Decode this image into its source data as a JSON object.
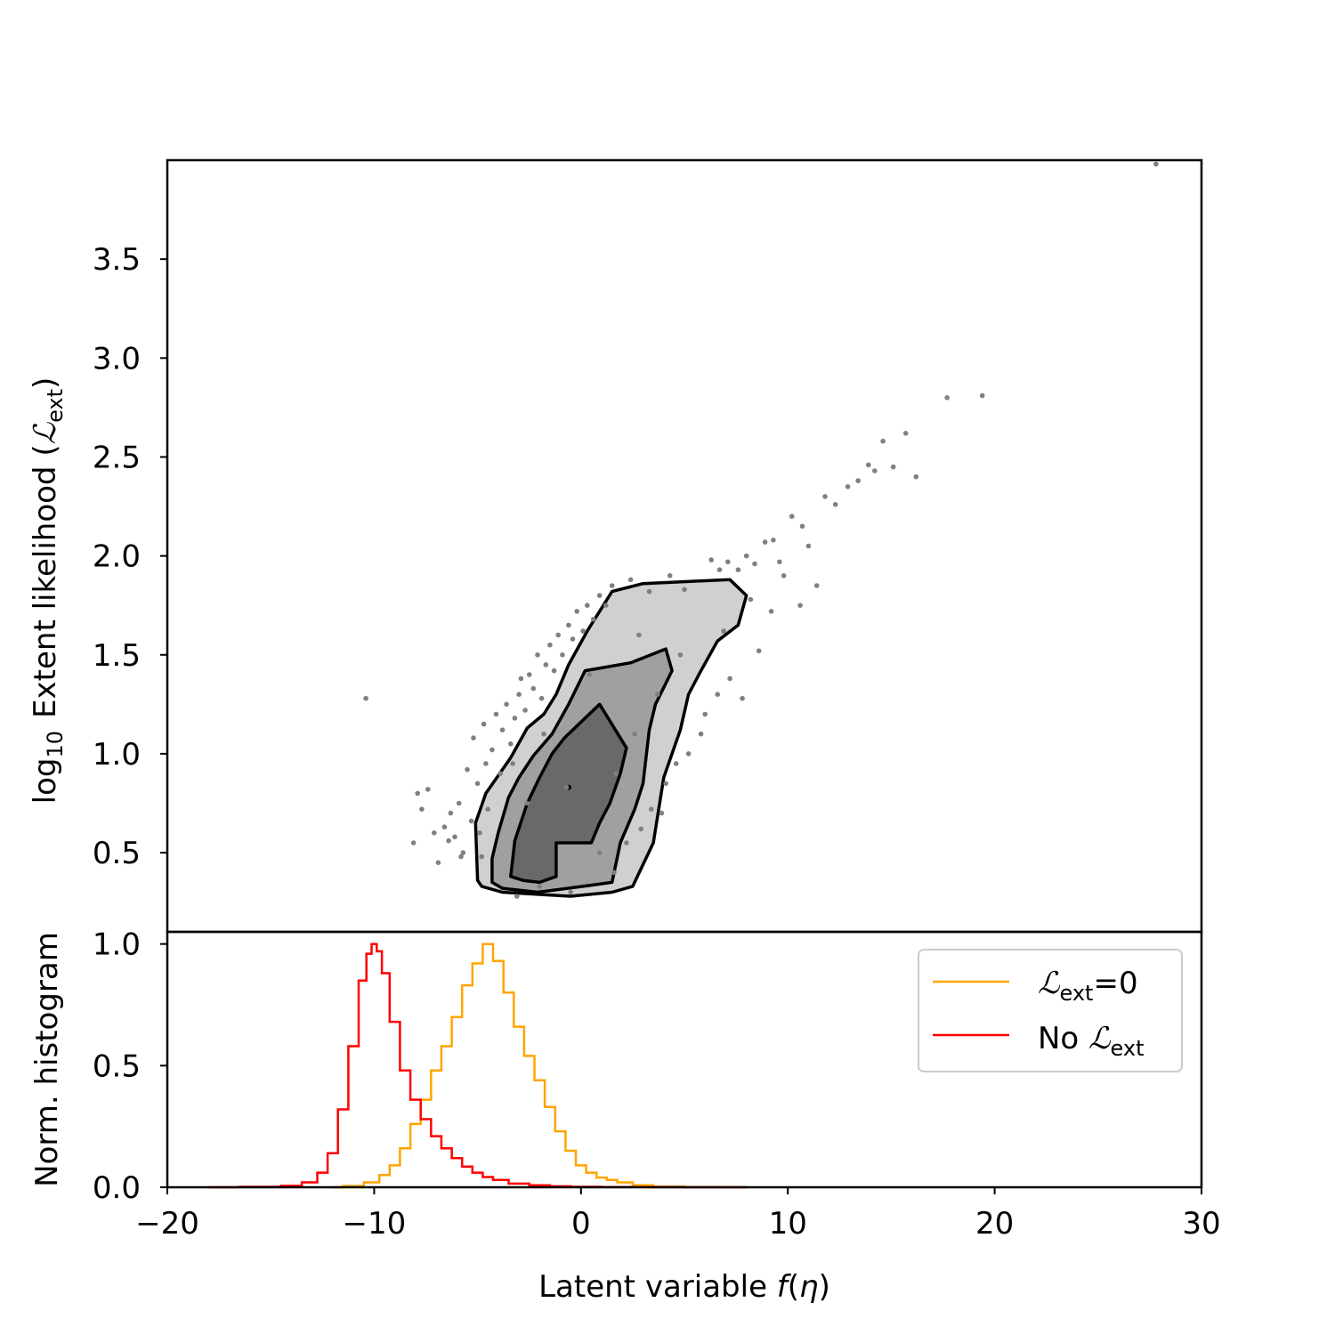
{
  "chart_data": [
    {
      "type": "scatter",
      "panel": "top",
      "ylabel": "log10 Extent likelihood (ℒext)",
      "ylabel_parts": {
        "prefix": "log",
        "sub10": "10",
        "mid": "Extent likelihood (",
        "script": "ℒ",
        "sub": "ext",
        "suffix": ")"
      },
      "xlim": [
        -20,
        30
      ],
      "ylim": [
        0.1,
        4.0
      ],
      "yticks": [
        0.5,
        1.0,
        1.5,
        2.0,
        2.5,
        3.0,
        3.5
      ],
      "ytick_labels": [
        "0.5",
        "1.0",
        "1.5",
        "2.0",
        "2.5",
        "3.0",
        "3.5"
      ],
      "points": [
        [
          -10.4,
          1.28
        ],
        [
          -8.1,
          0.55
        ],
        [
          -7.9,
          0.8
        ],
        [
          -7.4,
          0.82
        ],
        [
          -7.7,
          0.72
        ],
        [
          -7.1,
          0.6
        ],
        [
          -6.9,
          0.45
        ],
        [
          -6.6,
          0.63
        ],
        [
          -6.3,
          0.7
        ],
        [
          -6.1,
          0.58
        ],
        [
          -5.9,
          0.75
        ],
        [
          -5.7,
          0.5
        ],
        [
          -5.5,
          0.92
        ],
        [
          -5.3,
          0.66
        ],
        [
          -5.2,
          1.08
        ],
        [
          -5.0,
          0.85
        ],
        [
          -4.9,
          0.6
        ],
        [
          -4.7,
          1.15
        ],
        [
          -4.6,
          0.95
        ],
        [
          -4.5,
          0.72
        ],
        [
          -4.3,
          1.02
        ],
        [
          -4.1,
          1.2
        ],
        [
          -3.9,
          0.9
        ],
        [
          -3.8,
          1.12
        ],
        [
          -3.6,
          1.25
        ],
        [
          -3.4,
          1.05
        ],
        [
          -3.2,
          1.18
        ],
        [
          -3.0,
          1.3
        ],
        [
          -2.9,
          1.38
        ],
        [
          -2.7,
          1.22
        ],
        [
          -2.5,
          1.4
        ],
        [
          -2.3,
          1.33
        ],
        [
          -2.1,
          1.5
        ],
        [
          -1.9,
          1.28
        ],
        [
          -1.7,
          1.45
        ],
        [
          -1.5,
          1.55
        ],
        [
          -1.3,
          1.42
        ],
        [
          -1.1,
          1.6
        ],
        [
          -0.9,
          1.5
        ],
        [
          -0.6,
          1.65
        ],
        [
          -0.4,
          1.58
        ],
        [
          -0.2,
          1.72
        ],
        [
          0.1,
          1.62
        ],
        [
          0.3,
          1.75
        ],
        [
          0.6,
          1.68
        ],
        [
          0.9,
          1.8
        ],
        [
          1.2,
          1.75
        ],
        [
          1.5,
          1.85
        ],
        [
          2.4,
          1.88
        ],
        [
          2.8,
          1.6
        ],
        [
          3.3,
          1.82
        ],
        [
          4.3,
          1.9
        ],
        [
          5.0,
          1.83
        ],
        [
          6.3,
          1.98
        ],
        [
          6.7,
          1.93
        ],
        [
          7.1,
          1.97
        ],
        [
          7.6,
          1.93
        ],
        [
          8.0,
          2.0
        ],
        [
          8.4,
          1.96
        ],
        [
          8.9,
          2.07
        ],
        [
          9.3,
          2.08
        ],
        [
          9.6,
          1.97
        ],
        [
          10.2,
          2.2
        ],
        [
          10.7,
          2.15
        ],
        [
          11.0,
          2.05
        ],
        [
          11.8,
          2.3
        ],
        [
          12.3,
          2.26
        ],
        [
          12.9,
          2.35
        ],
        [
          13.4,
          2.38
        ],
        [
          13.9,
          2.46
        ],
        [
          14.2,
          2.43
        ],
        [
          14.6,
          2.58
        ],
        [
          15.1,
          2.45
        ],
        [
          15.7,
          2.62
        ],
        [
          16.2,
          2.4
        ],
        [
          17.7,
          2.8
        ],
        [
          19.4,
          2.81
        ],
        [
          27.8,
          3.98
        ],
        [
          -4.8,
          0.48
        ],
        [
          -2.0,
          0.33
        ],
        [
          0.9,
          0.5
        ],
        [
          2.2,
          0.55
        ],
        [
          3.4,
          0.72
        ],
        [
          4.1,
          0.85
        ],
        [
          5.2,
          1.0
        ],
        [
          6.0,
          1.2
        ],
        [
          7.2,
          1.38
        ],
        [
          7.8,
          1.28
        ],
        [
          8.6,
          1.52
        ],
        [
          9.2,
          1.72
        ],
        [
          10.6,
          1.75
        ],
        [
          11.4,
          1.85
        ],
        [
          5.8,
          1.1
        ],
        [
          6.6,
          1.3
        ],
        [
          4.6,
          0.95
        ],
        [
          3.9,
          0.7
        ],
        [
          2.9,
          0.62
        ],
        [
          1.6,
          0.4
        ],
        [
          -0.5,
          0.3
        ],
        [
          -5.8,
          0.48
        ],
        [
          -6.4,
          0.56
        ],
        [
          -3.1,
          0.28
        ],
        [
          4.8,
          1.5
        ],
        [
          3.7,
          1.3
        ],
        [
          2.6,
          1.1
        ],
        [
          1.7,
          0.9
        ],
        [
          -1.8,
          1.1
        ],
        [
          -3.3,
          0.95
        ],
        [
          -2.6,
          0.75
        ],
        [
          0.4,
          1.4
        ],
        [
          6.9,
          1.62
        ],
        [
          8.2,
          1.78
        ],
        [
          9.8,
          1.9
        ],
        [
          -0.7,
          0.83
        ]
      ],
      "point_color": "#808080",
      "contour_levels": [
        {
          "name": "outer",
          "fill": "#d0d0d0",
          "polygon": [
            [
              -2.0,
              0.27
            ],
            [
              1.5,
              0.3
            ],
            [
              1.4,
              0.35
            ],
            [
              2.7,
              0.46
            ],
            [
              2.0,
              0.72
            ],
            [
              2.6,
              0.85
            ],
            [
              3.5,
              1.12
            ],
            [
              4.3,
              1.35
            ],
            [
              5.0,
              1.62
            ],
            [
              6.3,
              1.86
            ],
            [
              8.0,
              1.82
            ],
            [
              7.2,
              1.62
            ],
            [
              5.8,
              1.3
            ],
            [
              4.5,
              0.95
            ],
            [
              3.6,
              0.62
            ],
            [
              2.8,
              0.4
            ],
            [
              2.7,
              0.48
            ],
            [
              2.4,
              0.38
            ],
            [
              -0.5,
              0.28
            ]
          ],
          "outline": [
            [
              -5.0,
              0.36
            ],
            [
              -5.1,
              0.65
            ],
            [
              -4.6,
              0.8
            ],
            [
              -3.4,
              0.98
            ],
            [
              -2.6,
              1.13
            ],
            [
              -1.8,
              1.2
            ],
            [
              -1.2,
              1.3
            ],
            [
              -0.6,
              1.45
            ],
            [
              0.3,
              1.62
            ],
            [
              1.5,
              1.82
            ],
            [
              3.0,
              1.86
            ],
            [
              7.2,
              1.88
            ],
            [
              8.0,
              1.8
            ],
            [
              7.6,
              1.65
            ],
            [
              6.6,
              1.57
            ],
            [
              5.8,
              1.42
            ],
            [
              5.2,
              1.3
            ],
            [
              4.8,
              1.12
            ],
            [
              4.0,
              0.88
            ],
            [
              3.5,
              0.55
            ],
            [
              2.5,
              0.33
            ],
            [
              1.5,
              0.3
            ],
            [
              -0.5,
              0.28
            ],
            [
              -3.8,
              0.3
            ],
            [
              -4.8,
              0.33
            ],
            [
              -5.0,
              0.36
            ]
          ]
        },
        {
          "name": "middle",
          "fill": "#a0a0a0",
          "outline": [
            [
              -4.3,
              0.35
            ],
            [
              -4.3,
              0.47
            ],
            [
              -4.0,
              0.6
            ],
            [
              -3.5,
              0.78
            ],
            [
              -3.0,
              0.88
            ],
            [
              -2.3,
              0.99
            ],
            [
              -1.4,
              1.1
            ],
            [
              -0.6,
              1.25
            ],
            [
              0.2,
              1.42
            ],
            [
              2.4,
              1.46
            ],
            [
              4.1,
              1.53
            ],
            [
              4.4,
              1.42
            ],
            [
              3.6,
              1.25
            ],
            [
              3.3,
              1.12
            ],
            [
              3.0,
              0.85
            ],
            [
              2.6,
              0.72
            ],
            [
              1.9,
              0.55
            ],
            [
              1.5,
              0.35
            ],
            [
              0.1,
              0.33
            ],
            [
              -2.1,
              0.3
            ],
            [
              -3.8,
              0.32
            ],
            [
              -4.3,
              0.35
            ]
          ]
        },
        {
          "name": "inner",
          "fill": "#696969",
          "outline": [
            [
              -3.4,
              0.38
            ],
            [
              -3.2,
              0.56
            ],
            [
              -2.6,
              0.75
            ],
            [
              -2.0,
              0.88
            ],
            [
              -1.4,
              1.0
            ],
            [
              -0.8,
              1.08
            ],
            [
              0.9,
              1.25
            ],
            [
              2.2,
              1.03
            ],
            [
              1.9,
              0.9
            ],
            [
              1.4,
              0.75
            ],
            [
              0.9,
              0.65
            ],
            [
              0.5,
              0.55
            ],
            [
              -1.2,
              0.55
            ],
            [
              -1.2,
              0.38
            ],
            [
              -2.0,
              0.35
            ],
            [
              -2.8,
              0.36
            ],
            [
              -3.4,
              0.38
            ]
          ]
        }
      ]
    },
    {
      "type": "line",
      "panel": "bottom",
      "xlabel": "Latent variable f(η)",
      "xlabel_parts": {
        "prefix": "Latent variable ",
        "italic": "f",
        "open": "(",
        "eta": "η",
        "close": ")"
      },
      "ylabel": "Norm. histogram",
      "xlim": [
        -20,
        30
      ],
      "ylim": [
        0.0,
        1.05
      ],
      "xticks": [
        -20,
        -10,
        0,
        10,
        20,
        30
      ],
      "xtick_labels": [
        "−20",
        "−10",
        "0",
        "10",
        "20",
        "30"
      ],
      "yticks": [
        0.0,
        0.5,
        1.0
      ],
      "ytick_labels": [
        "0.0",
        "0.5",
        "1.0"
      ],
      "legend_position": "upper-right",
      "series": [
        {
          "name": "ℒext=0",
          "name_parts": {
            "script": "ℒ",
            "sub": "ext",
            "suffix": "=0"
          },
          "color": "#ffa500",
          "x": [
            -12.0,
            -11.0,
            -10.0,
            -9.5,
            -9.0,
            -8.5,
            -8.0,
            -7.5,
            -7.0,
            -6.5,
            -6.0,
            -5.5,
            -5.0,
            -4.5,
            -4.0,
            -3.5,
            -3.0,
            -2.5,
            -2.0,
            -1.5,
            -1.0,
            -0.5,
            0.0,
            0.5,
            1.0,
            1.5,
            2.0,
            3.0,
            4.0,
            6.0,
            8.0
          ],
          "y": [
            0.0,
            0.005,
            0.02,
            0.05,
            0.09,
            0.16,
            0.26,
            0.36,
            0.48,
            0.58,
            0.7,
            0.83,
            0.92,
            1.0,
            0.93,
            0.8,
            0.66,
            0.54,
            0.44,
            0.33,
            0.23,
            0.15,
            0.09,
            0.06,
            0.04,
            0.03,
            0.02,
            0.008,
            0.003,
            0.001,
            0.0
          ]
        },
        {
          "name": "No ℒext",
          "name_parts": {
            "prefix": "No ",
            "script": "ℒ",
            "sub": "ext"
          },
          "color": "#ff0000",
          "x": [
            -18.0,
            -15.0,
            -14.0,
            -13.0,
            -12.5,
            -12.0,
            -11.5,
            -11.0,
            -10.5,
            -10.25,
            -10.0,
            -9.75,
            -9.5,
            -9.0,
            -8.5,
            -8.0,
            -7.5,
            -7.0,
            -6.5,
            -6.0,
            -5.5,
            -5.0,
            -4.5,
            -4.0,
            -3.0,
            -2.0,
            -1.0,
            0.0,
            2.0,
            4.0,
            6.0,
            8.0
          ],
          "y": [
            0.0,
            0.002,
            0.006,
            0.02,
            0.06,
            0.14,
            0.32,
            0.58,
            0.85,
            0.96,
            1.0,
            0.97,
            0.88,
            0.68,
            0.48,
            0.36,
            0.28,
            0.21,
            0.16,
            0.12,
            0.085,
            0.06,
            0.042,
            0.03,
            0.015,
            0.008,
            0.004,
            0.002,
            0.001,
            0.0005,
            0.0,
            0.0
          ]
        }
      ]
    }
  ]
}
